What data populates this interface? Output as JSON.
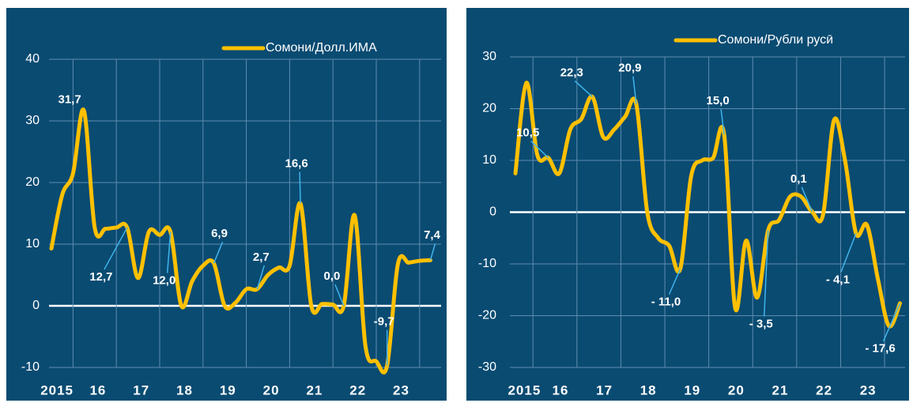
{
  "chart_data": [
    {
      "type": "line",
      "categories": [
        "2015",
        null,
        null,
        null,
        "16",
        null,
        null,
        null,
        "17",
        null,
        null,
        null,
        "18",
        null,
        null,
        null,
        "19",
        null,
        null,
        null,
        "20",
        null,
        null,
        null,
        "21",
        null,
        null,
        null,
        "22",
        null,
        null,
        null,
        "23",
        null,
        null,
        null
      ],
      "series": [
        {
          "name": "Сомони/Долл.ИМА",
          "color": "#ffc000",
          "values": [
            9.3,
            18,
            21.5,
            31.7,
            12.7,
            12.5,
            12.7,
            12.7,
            4.5,
            12,
            11.5,
            12.0,
            0,
            4,
            6.5,
            6.9,
            0,
            0.5,
            2.7,
            2.7,
            5,
            6.2,
            6.5,
            16.6,
            0,
            0.3,
            0.2,
            0.0,
            14.7,
            -6.5,
            -9,
            -9.7,
            6.8,
            7,
            7.3,
            7.4
          ],
          "value_labels": [
            null,
            null,
            null,
            "31,7",
            null,
            null,
            null,
            "12,7",
            null,
            null,
            null,
            "12,0",
            null,
            null,
            null,
            "6,9",
            null,
            null,
            null,
            "2,7",
            null,
            null,
            null,
            "16,6",
            null,
            null,
            null,
            "0,0",
            null,
            null,
            null,
            "-9,7",
            null,
            null,
            null,
            "7,4"
          ]
        }
      ],
      "ylim": [
        -10,
        40
      ],
      "yticks": [
        -10,
        0,
        10,
        20,
        30,
        40
      ],
      "grid": true
    },
    {
      "type": "line",
      "categories": [
        "2015",
        null,
        null,
        null,
        "16",
        null,
        null,
        null,
        "17",
        null,
        null,
        null,
        "18",
        null,
        null,
        null,
        "19",
        null,
        null,
        null,
        "20",
        null,
        null,
        null,
        "21",
        null,
        null,
        null,
        "22",
        null,
        null,
        null,
        "23",
        null,
        null,
        null
      ],
      "series": [
        {
          "name": "Сомони/Рубли русӣ",
          "color": "#ffc000",
          "values": [
            7.5,
            25,
            11,
            10.5,
            7.5,
            16,
            18,
            22.3,
            14.5,
            16,
            18.5,
            20.9,
            0,
            -5,
            -6.5,
            -11.0,
            7,
            10,
            10.5,
            15.0,
            -18.5,
            -5.5,
            -16.5,
            -3.5,
            -1.5,
            3,
            3,
            0.1,
            -0.5,
            17.8,
            10,
            -4.1,
            -2.5,
            -13,
            -22,
            -17.6
          ],
          "value_labels": [
            null,
            null,
            null,
            "10,5",
            null,
            null,
            null,
            "22,3",
            null,
            null,
            null,
            "20,9",
            null,
            null,
            null,
            "- 11,0",
            null,
            null,
            null,
            "15,0",
            null,
            null,
            null,
            "- 3,5",
            null,
            null,
            null,
            "0,1",
            null,
            null,
            null,
            "- 4,1",
            null,
            null,
            null,
            "- 17,6"
          ]
        }
      ],
      "ylim": [
        -30,
        30
      ],
      "yticks": [
        -30,
        -20,
        -10,
        0,
        10,
        20,
        30
      ],
      "grid": true
    }
  ]
}
